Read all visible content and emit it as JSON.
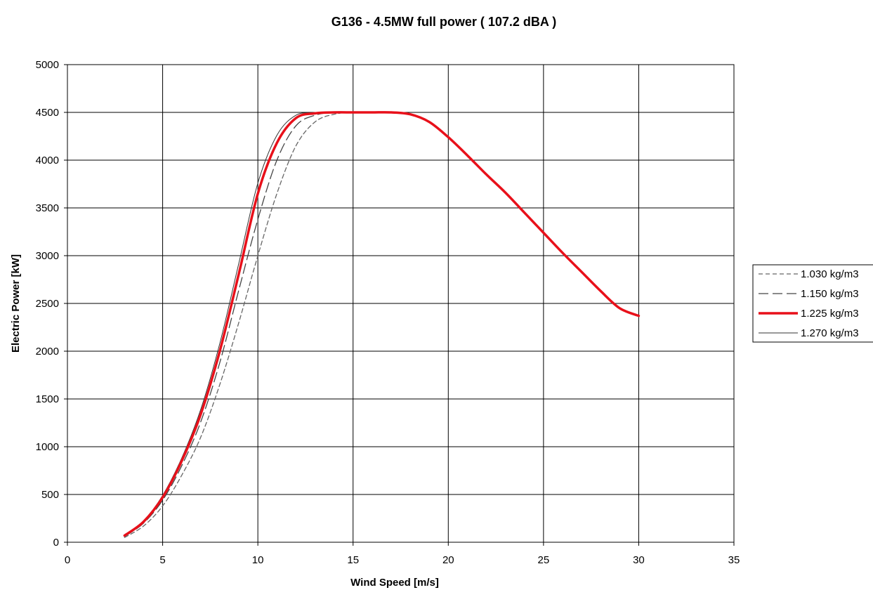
{
  "chart_data": {
    "type": "line",
    "title": "G136 - 4.5MW full power (  107.2 dBA  )",
    "xlabel": "Wind Speed [m/s]",
    "ylabel": "Electric Power [kW]",
    "xlim": [
      0,
      35
    ],
    "ylim": [
      0,
      5000
    ],
    "xticks": [
      0,
      5,
      10,
      15,
      20,
      25,
      30,
      35
    ],
    "yticks": [
      0,
      500,
      1000,
      1500,
      2000,
      2500,
      3000,
      3500,
      4000,
      4500,
      5000
    ],
    "grid": true,
    "legend_position": "right",
    "x": [
      3,
      4,
      5,
      6,
      7,
      8,
      9,
      10,
      11,
      12,
      13,
      14,
      15,
      16,
      17,
      18,
      19,
      20,
      21,
      22,
      23,
      24,
      25,
      26,
      27,
      28,
      29,
      30
    ],
    "series": [
      {
        "name": "1.030 kg/m3",
        "color": "#666666",
        "style": "dashed",
        "values": [
          50,
          170,
          380,
          700,
          1100,
          1650,
          2300,
          3000,
          3650,
          4150,
          4400,
          4480,
          4500,
          4500,
          4500,
          4480,
          4400,
          4240,
          4050,
          3850,
          3660,
          3450,
          3240,
          3030,
          2830,
          2630,
          2450,
          2370
        ]
      },
      {
        "name": "1.150 kg/m3",
        "color": "#444444",
        "style": "longdash",
        "values": [
          60,
          200,
          440,
          800,
          1260,
          1880,
          2640,
          3380,
          4000,
          4360,
          4470,
          4500,
          4500,
          4500,
          4500,
          4480,
          4400,
          4240,
          4050,
          3850,
          3660,
          3450,
          3240,
          3030,
          2830,
          2630,
          2450,
          2370
        ]
      },
      {
        "name": "1.225 kg/m3",
        "color": "#e8101a",
        "style": "solid-bold",
        "values": [
          70,
          215,
          470,
          850,
          1340,
          2000,
          2810,
          3650,
          4180,
          4440,
          4490,
          4500,
          4500,
          4500,
          4500,
          4480,
          4400,
          4240,
          4050,
          3850,
          3660,
          3450,
          3240,
          3030,
          2830,
          2630,
          2450,
          2370
        ]
      },
      {
        "name": "1.270 kg/m3",
        "color": "#333333",
        "style": "solid-thin",
        "values": [
          75,
          225,
          490,
          880,
          1390,
          2080,
          2920,
          3760,
          4260,
          4470,
          4495,
          4500,
          4500,
          4500,
          4500,
          4480,
          4400,
          4240,
          4050,
          3850,
          3660,
          3450,
          3240,
          3030,
          2830,
          2630,
          2450,
          2370
        ]
      }
    ]
  }
}
